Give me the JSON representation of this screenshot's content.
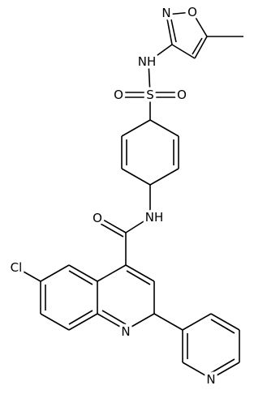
{
  "atoms": [
    {
      "label": "N"
    },
    {
      "label": "O"
    },
    {
      "label": "NH"
    },
    {
      "label": "S"
    },
    {
      "label": "O"
    },
    {
      "label": "O"
    },
    {
      "label": "NH"
    },
    {
      "label": "O"
    },
    {
      "label": "Cl"
    },
    {
      "label": "N"
    },
    {
      "label": "N"
    }
  ]
}
